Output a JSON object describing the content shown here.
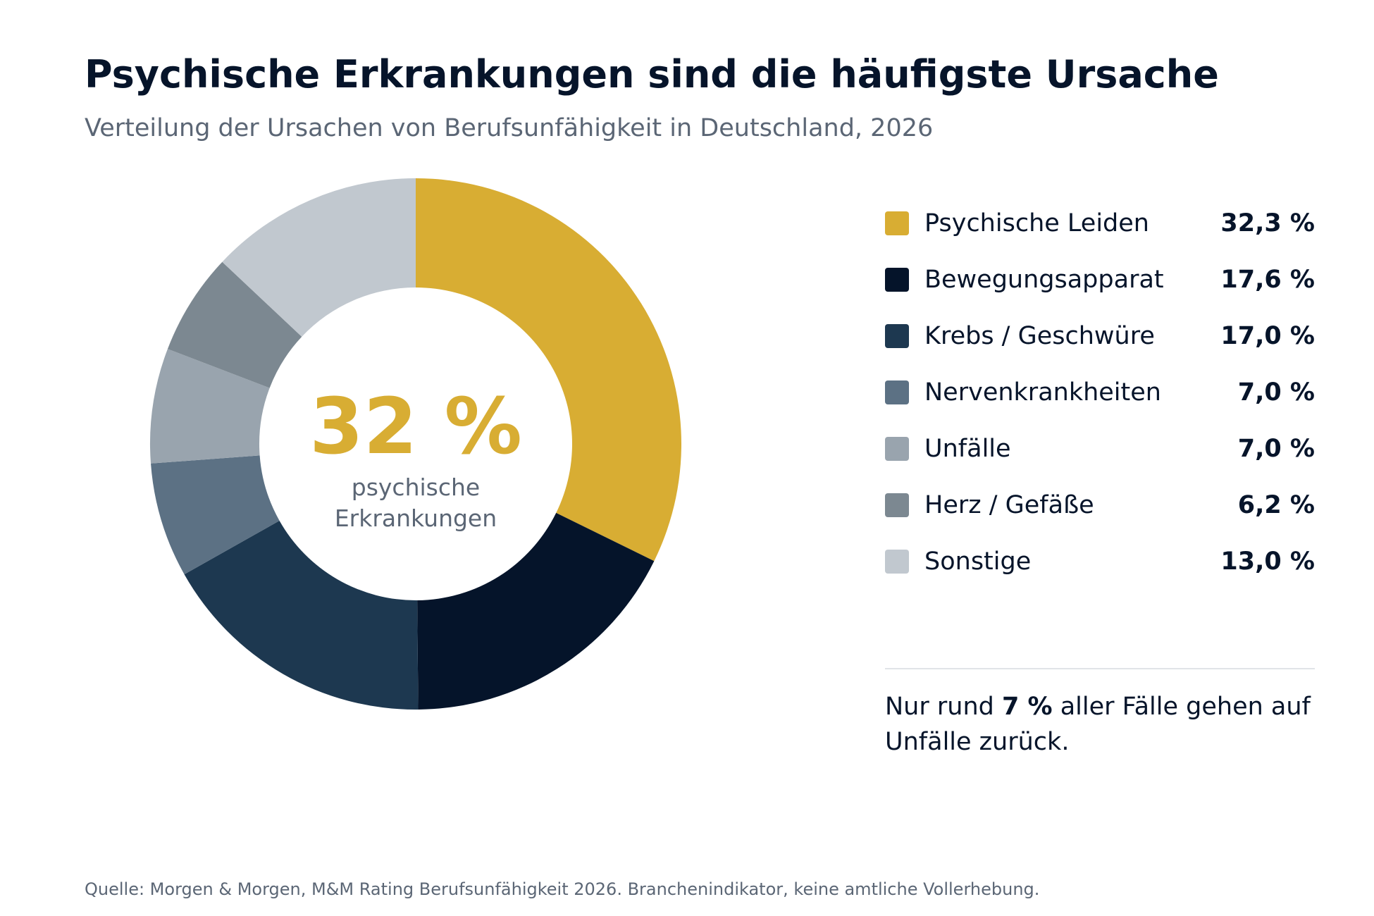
{
  "header": {
    "title": "Psychische Erkrankungen sind die häufigste Ursache",
    "subtitle": "Verteilung der Ursachen von Berufsunfähigkeit in Deutschland, 2026"
  },
  "chart_data": {
    "type": "pie",
    "title": "Psychische Erkrankungen sind die häufigste Ursache",
    "subtitle": "Verteilung der Ursachen von Berufsunfähigkeit in Deutschland, 2026",
    "donut": true,
    "categories": [
      "Psychische Leiden",
      "Bewegungsapparat",
      "Krebs / Geschwüre",
      "Nervenkrankheiten",
      "Unfälle",
      "Herz / Gefäße",
      "Sonstige"
    ],
    "values": [
      32.3,
      17.6,
      17.0,
      7.0,
      7.0,
      6.2,
      13.0
    ],
    "value_labels": [
      "32,3 %",
      "17,6 %",
      "17,0 %",
      "7,0 %",
      "7,0 %",
      "6,2 %",
      "13,0 %"
    ],
    "colors": [
      "#d8ad33",
      "#05142a",
      "#1d3850",
      "#5c7184",
      "#99a4ae",
      "#7c8891",
      "#c1c8cf"
    ],
    "legend_position": "right",
    "center": {
      "value": "32 %",
      "label_line1": "psychische",
      "label_line2": "Erkrankungen",
      "value_color": "#d8ad33"
    }
  },
  "note": {
    "prefix": "Nur rund ",
    "highlight": "7 %",
    "suffix": " aller Fälle gehen auf Unfälle zurück."
  },
  "footer": {
    "source": "Quelle: Morgen & Morgen, M&M Rating Berufsunfähigkeit 2026. Branchenindikator, keine amtliche Vollerhebung."
  }
}
